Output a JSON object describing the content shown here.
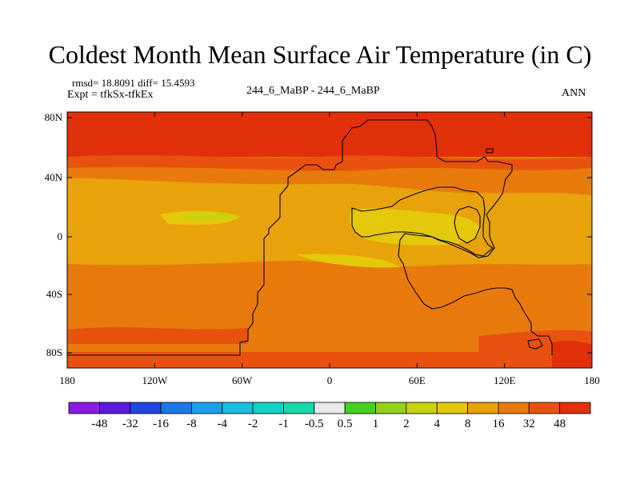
{
  "title": "Coldest Month Mean Surface Air Temperature (in C)",
  "stats": "rmsd= 18.8091 diff= 15.4593",
  "experiment": "Expt = tfkSx-tfkEx",
  "center_label": "244_6_MaBP - 244_6_MaBP",
  "period": "ANN",
  "lat_ticks": [
    "80N",
    "40N",
    "0",
    "40S",
    "80S"
  ],
  "lon_ticks": [
    "180",
    "120W",
    "60W",
    "0",
    "60E",
    "120E",
    "180"
  ],
  "colorbar": {
    "labels": [
      "-48",
      "-32",
      "-16",
      "-8",
      "-4",
      "-2",
      "-1",
      "-0.5",
      "0.5",
      "1",
      "2",
      "4",
      "8",
      "16",
      "32",
      "48"
    ],
    "colors": [
      "#8a1be0",
      "#5a18dc",
      "#2046e0",
      "#1a78e8",
      "#1aa0ea",
      "#18bde0",
      "#12d2c8",
      "#18d8a8",
      "#e8e8e8",
      "#48d020",
      "#92d218",
      "#c8d20e",
      "#e4c80a",
      "#e8a20a",
      "#e87a0c",
      "#e8520e",
      "#e23008"
    ]
  },
  "field_colors": {
    "band_48": "#e23008",
    "band_32": "#e8520e",
    "band_16": "#e87a0c",
    "band_8": "#e8a20a",
    "band_4": "#e4c80a",
    "band_2": "#c8d20e"
  }
}
